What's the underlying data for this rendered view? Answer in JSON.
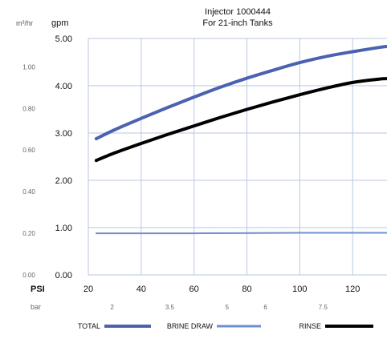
{
  "chart_data": {
    "type": "line",
    "title": "Injector 1000444",
    "subtitle": "For 21-inch Tanks",
    "y_unit_metric": "m³/hr",
    "y_unit_us": "gpm",
    "x_unit_us": "PSI",
    "x_unit_metric": "bar",
    "xlim": [
      20,
      133
    ],
    "ylim": [
      0,
      5
    ],
    "grid": true,
    "x_ticks": [
      20,
      40,
      60,
      80,
      100,
      120
    ],
    "x_tick_labels": [
      "20",
      "40",
      "60",
      "80",
      "100",
      "120"
    ],
    "y_ticks": [
      0,
      1,
      2,
      3,
      4,
      5
    ],
    "y_tick_labels": [
      "0.00",
      "1.00",
      "2.00",
      "3.00",
      "4.00",
      "5.00"
    ],
    "y_ticks_metric": [
      {
        "gpm": 0.0,
        "label": "0.00"
      },
      {
        "gpm": 0.88,
        "label": "0.20"
      },
      {
        "gpm": 1.76,
        "label": "0.40"
      },
      {
        "gpm": 2.64,
        "label": "0.60"
      },
      {
        "gpm": 3.52,
        "label": "0.80"
      },
      {
        "gpm": 4.4,
        "label": "1.00"
      }
    ],
    "x_ticks_metric": [
      {
        "psi": 29,
        "label": "2"
      },
      {
        "psi": 50.8,
        "label": "3.5"
      },
      {
        "psi": 72.5,
        "label": "5"
      },
      {
        "psi": 87,
        "label": "6"
      },
      {
        "psi": 108.8,
        "label": "7.5"
      }
    ],
    "series": [
      {
        "name": "TOTAL",
        "color": "#4a62b0",
        "width": 4,
        "x": [
          23,
          30,
          40,
          50,
          60,
          70,
          80,
          90,
          100,
          110,
          120,
          130,
          133
        ],
        "y": [
          2.88,
          3.07,
          3.31,
          3.54,
          3.76,
          3.97,
          4.16,
          4.33,
          4.49,
          4.62,
          4.72,
          4.81,
          4.83
        ]
      },
      {
        "name": "BRINE DRAW",
        "color": "#6f90cf",
        "width": 2,
        "x": [
          23,
          60,
          100,
          133
        ],
        "y": [
          0.88,
          0.88,
          0.89,
          0.89
        ]
      },
      {
        "name": "RINSE",
        "color": "#000000",
        "width": 4,
        "x": [
          23,
          30,
          40,
          50,
          60,
          70,
          80,
          90,
          100,
          110,
          120,
          130,
          133
        ],
        "y": [
          2.42,
          2.58,
          2.78,
          2.97,
          3.15,
          3.33,
          3.5,
          3.66,
          3.81,
          3.95,
          4.07,
          4.14,
          4.15
        ]
      }
    ],
    "legend_position": "bottom"
  }
}
